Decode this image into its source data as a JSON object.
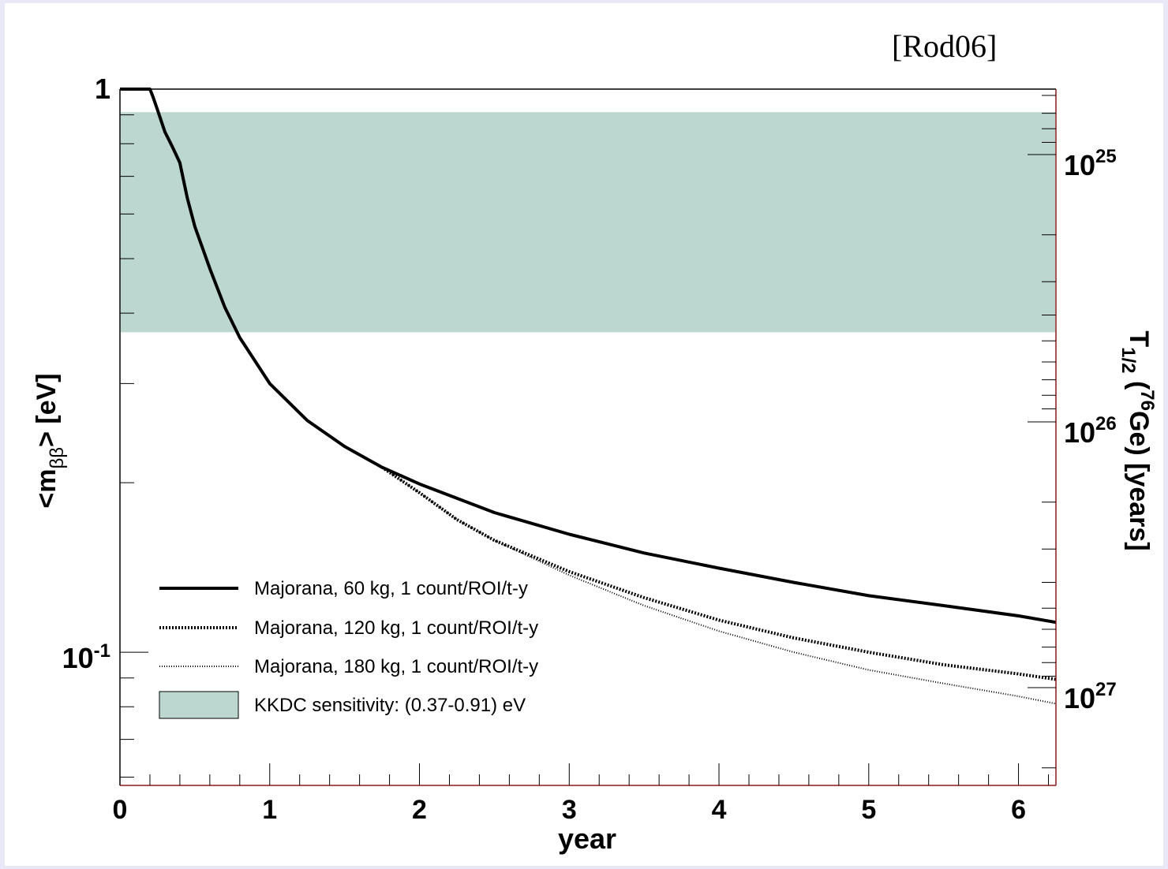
{
  "citation": "[Rod06]",
  "colors": {
    "band": "#bcd7cf",
    "right_axis": "#8b1a1a",
    "line": "#000000"
  },
  "chart_data": {
    "type": "line",
    "xlabel": "year",
    "ylabel_left": "<mββ> [eV]",
    "ylabel_right": "T1/2 (76Ge) [years]",
    "xlim": [
      0,
      6.25
    ],
    "ylim": [
      0.058,
      1.0
    ],
    "y_scale": "log",
    "x_ticks": [
      "0",
      "1",
      "2",
      "3",
      "4",
      "5",
      "6"
    ],
    "y_ticks_left": [
      "1",
      "10-1"
    ],
    "y_ticks_right": [
      "1025",
      "1026",
      "1027"
    ],
    "band": {
      "label": "KKDC sensitivity: (0.37-0.91) eV",
      "ymin": 0.37,
      "ymax": 0.91
    },
    "legend_position": "bottom-left",
    "series": [
      {
        "name": "Majorana, 60 kg, 1 count/ROI/t-y",
        "style": "solid",
        "points": [
          [
            0,
            1.0
          ],
          [
            0.2,
            1.0
          ],
          [
            0.22,
            0.97
          ],
          [
            0.25,
            0.92
          ],
          [
            0.3,
            0.84
          ],
          [
            0.35,
            0.79
          ],
          [
            0.4,
            0.74
          ],
          [
            0.45,
            0.64
          ],
          [
            0.5,
            0.57
          ],
          [
            0.6,
            0.48
          ],
          [
            0.7,
            0.41
          ],
          [
            0.8,
            0.362
          ],
          [
            1.0,
            0.3
          ],
          [
            1.25,
            0.258
          ],
          [
            1.5,
            0.232
          ],
          [
            1.75,
            0.213
          ],
          [
            2.0,
            0.199
          ],
          [
            2.5,
            0.177
          ],
          [
            3.0,
            0.162
          ],
          [
            3.5,
            0.15
          ],
          [
            4.0,
            0.141
          ],
          [
            4.5,
            0.133
          ],
          [
            5.0,
            0.126
          ],
          [
            5.5,
            0.121
          ],
          [
            6.0,
            0.116
          ],
          [
            6.25,
            0.113
          ]
        ]
      },
      {
        "name": "Majorana, 120 kg, 1 count/ROI/t-y",
        "style": "dotted",
        "points": [
          [
            1.75,
            0.213
          ],
          [
            2.0,
            0.192
          ],
          [
            2.25,
            0.172
          ],
          [
            2.5,
            0.158
          ],
          [
            3.0,
            0.139
          ],
          [
            3.5,
            0.125
          ],
          [
            4.0,
            0.114
          ],
          [
            4.5,
            0.106
          ],
          [
            5.0,
            0.1
          ],
          [
            5.5,
            0.095
          ],
          [
            6.0,
            0.0915
          ],
          [
            6.25,
            0.0895
          ]
        ]
      },
      {
        "name": "Majorana, 180 kg, 1 count/ROI/t-y",
        "style": "fine-dotted",
        "points": [
          [
            1.75,
            0.213
          ],
          [
            2.0,
            0.192
          ],
          [
            2.25,
            0.172
          ],
          [
            2.5,
            0.158
          ],
          [
            3.0,
            0.137
          ],
          [
            3.5,
            0.121
          ],
          [
            4.0,
            0.109
          ],
          [
            4.5,
            0.1
          ],
          [
            5.0,
            0.093
          ],
          [
            5.5,
            0.088
          ],
          [
            6.0,
            0.0835
          ],
          [
            6.25,
            0.081
          ]
        ]
      }
    ]
  }
}
